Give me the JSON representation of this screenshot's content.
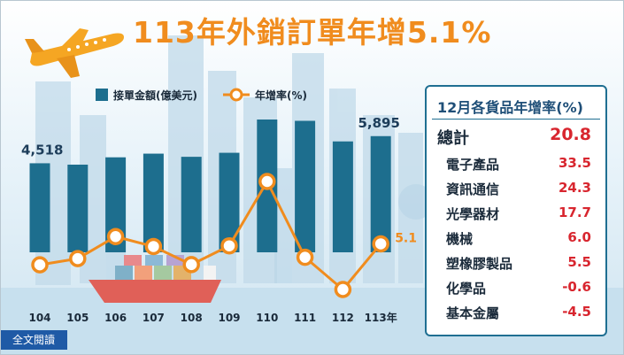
{
  "title": "113年外銷訂單年增5.1%",
  "footer": {
    "label": "全文閱讀"
  },
  "colors": {
    "bar": "#1d6e8e",
    "line": "#f08c1e",
    "title": "#f08c1e",
    "accent_red": "#d8262f"
  },
  "chart_data": {
    "type": "bar",
    "categories": [
      "104",
      "105",
      "106",
      "107",
      "108",
      "109",
      "110",
      "111",
      "112",
      "113年"
    ],
    "series": [
      {
        "name": "接單金額(億美元)",
        "type": "bar",
        "values": [
          4518,
          4448,
          4820,
          5006,
          4846,
          5050,
          6738,
          6672,
          5627,
          5895
        ]
      },
      {
        "name": "年增率(%)",
        "type": "line",
        "values": [
          -4.4,
          -1.6,
          8.4,
          3.9,
          -4.3,
          4.2,
          33.4,
          -1.0,
          -15.6,
          5.1
        ]
      }
    ],
    "data_labels": [
      {
        "category": "104",
        "text": "4,518"
      },
      {
        "category": "113年",
        "text": "5,895"
      },
      {
        "category": "113年",
        "text": "5.1"
      }
    ],
    "legend_position": "top"
  },
  "panel": {
    "title": "12月各貨品年增率(%)",
    "total": {
      "label": "總計",
      "value": "20.8"
    },
    "items": [
      {
        "label": "電子產品",
        "value": "33.5"
      },
      {
        "label": "資訊通信",
        "value": "24.3"
      },
      {
        "label": "光學器材",
        "value": "17.7"
      },
      {
        "label": "機械",
        "value": "6.0"
      },
      {
        "label": "塑橡膠製品",
        "value": "5.5"
      },
      {
        "label": "化學品",
        "value": "-0.6"
      },
      {
        "label": "基本金屬",
        "value": "-4.5"
      }
    ]
  }
}
